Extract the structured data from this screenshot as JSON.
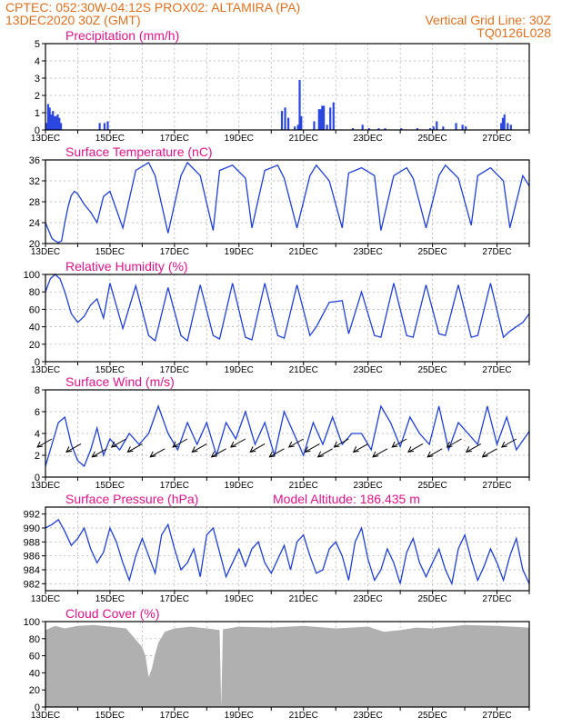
{
  "header": {
    "line1_left": "CPTEC:   052:30W-04:12S   PROX02: ALTAMIRA (PA)",
    "line2_left": "13DEC2020 30Z (GMT)",
    "line2_right": "Vertical Grid Line: 30Z",
    "line3_right": "TQ0126L028"
  },
  "colors": {
    "series": "#1f3fd8",
    "title": "#e0148c",
    "header": "#e07020",
    "cloud": "#b0b0b0"
  },
  "chart_data": [
    {
      "type": "bar",
      "title": "Precipitation (mm/h)",
      "xlabel": "",
      "ylabel": "mm/h",
      "ylim": [
        0,
        5
      ],
      "yticks": [
        "0",
        "1",
        "2",
        "3",
        "4",
        "5"
      ],
      "xticks": [
        "13DEC",
        "15DEC",
        "17DEC",
        "19DEC",
        "21DEC",
        "23DEC",
        "25DEC",
        "27DEC"
      ],
      "x_day_range": [
        0,
        15
      ],
      "x": [
        0.0,
        0.05,
        0.1,
        0.15,
        0.2,
        0.25,
        0.3,
        0.35,
        0.4,
        0.45,
        1.65,
        1.8,
        1.9,
        7.3,
        7.4,
        7.5,
        7.7,
        7.8,
        7.85,
        7.9,
        8.3,
        8.45,
        8.5,
        8.55,
        8.6,
        8.7,
        8.8,
        8.9,
        9.5,
        9.8,
        10.0,
        10.3,
        10.5,
        11.0,
        11.5,
        11.9,
        12.0,
        12.1,
        12.3,
        12.7,
        12.9,
        13.0,
        14.1,
        14.15,
        14.2,
        14.3,
        14.4
      ],
      "values": [
        0.4,
        1.5,
        1.3,
        0.9,
        1.1,
        0.8,
        0.8,
        0.9,
        0.7,
        0.4,
        0.4,
        0.4,
        0.5,
        1.1,
        1.3,
        0.7,
        0.2,
        0.3,
        2.9,
        0.8,
        0.5,
        1.2,
        1.2,
        1.4,
        1.4,
        0.3,
        1.3,
        1.6,
        0.1,
        0.3,
        0.1,
        0.1,
        0.1,
        0.1,
        0.1,
        0.1,
        0.2,
        0.5,
        0.2,
        0.4,
        0.3,
        0.2,
        0.4,
        0.7,
        0.9,
        0.4,
        0.3
      ]
    },
    {
      "type": "line",
      "title": "Surface Temperature (nC)",
      "ylim": [
        20,
        36
      ],
      "yticks": [
        "20",
        "24",
        "28",
        "32",
        "36"
      ],
      "xticks": [
        "13DEC",
        "15DEC",
        "17DEC",
        "19DEC",
        "21DEC",
        "23DEC",
        "25DEC",
        "27DEC"
      ],
      "x_day_range": [
        0,
        15
      ],
      "x": [
        0,
        0.1,
        0.2,
        0.3,
        0.4,
        0.5,
        0.6,
        0.7,
        0.8,
        0.9,
        1.0,
        1.2,
        1.4,
        1.6,
        1.8,
        2.0,
        2.4,
        2.8,
        3.2,
        3.4,
        3.8,
        4.2,
        4.4,
        4.8,
        5.2,
        5.4,
        5.8,
        6.2,
        6.4,
        6.8,
        7.2,
        7.4,
        7.8,
        8.2,
        8.4,
        8.8,
        9.2,
        9.4,
        9.8,
        10.2,
        10.4,
        10.8,
        11.2,
        11.4,
        11.8,
        12.2,
        12.4,
        12.8,
        13.2,
        13.4,
        13.8,
        14.2,
        14.4,
        14.8,
        15.0
      ],
      "values": [
        24,
        22.5,
        21,
        20.5,
        20.2,
        20.5,
        24,
        27,
        29.2,
        30,
        29.5,
        27.5,
        26,
        24,
        29,
        30,
        23,
        34,
        35.5,
        33,
        22,
        33,
        35.5,
        33,
        22.5,
        34,
        35,
        32.5,
        23,
        34,
        35,
        32.5,
        23,
        33,
        35,
        32,
        23,
        33.5,
        34.5,
        33,
        22.5,
        33,
        34.5,
        32.5,
        23,
        33,
        35,
        32.5,
        23.5,
        33,
        34.5,
        32,
        23,
        33,
        31
      ]
    },
    {
      "type": "line",
      "title": "Relative Humidity (%)",
      "ylim": [
        0,
        100
      ],
      "yticks": [
        "0",
        "20",
        "40",
        "60",
        "80",
        "100"
      ],
      "xticks": [
        "13DEC",
        "15DEC",
        "17DEC",
        "19DEC",
        "21DEC",
        "23DEC",
        "25DEC",
        "27DEC"
      ],
      "x_day_range": [
        0,
        15
      ],
      "x": [
        0,
        0.15,
        0.3,
        0.45,
        0.6,
        0.8,
        1.0,
        1.2,
        1.4,
        1.6,
        1.8,
        2.0,
        2.4,
        2.8,
        3.2,
        3.4,
        3.8,
        4.2,
        4.4,
        4.8,
        5.2,
        5.4,
        5.8,
        6.2,
        6.4,
        6.8,
        7.2,
        7.4,
        7.8,
        8.2,
        8.4,
        8.8,
        9.2,
        9.4,
        9.8,
        10.2,
        10.4,
        10.8,
        11.2,
        11.4,
        11.8,
        12.2,
        12.4,
        12.8,
        13.2,
        13.4,
        13.8,
        14.2,
        14.4,
        14.8,
        15.0
      ],
      "values": [
        80,
        95,
        100,
        95,
        80,
        55,
        45,
        52,
        65,
        72,
        50,
        90,
        38,
        87,
        30,
        24,
        85,
        30,
        24,
        88,
        30,
        26,
        90,
        28,
        25,
        90,
        30,
        27,
        88,
        30,
        40,
        68,
        70,
        32,
        80,
        30,
        28,
        90,
        30,
        28,
        88,
        32,
        30,
        88,
        28,
        30,
        90,
        28,
        35,
        45,
        55
      ]
    },
    {
      "type": "line",
      "title": "Surface Wind (m/s)",
      "ylim": [
        0,
        8
      ],
      "yticks": [
        "0",
        "2",
        "4",
        "6",
        "8"
      ],
      "xticks": [
        "13DEC",
        "15DEC",
        "17DEC",
        "19DEC",
        "21DEC",
        "23DEC",
        "25DEC",
        "27DEC"
      ],
      "x_day_range": [
        0,
        15
      ],
      "x": [
        0,
        0.2,
        0.4,
        0.6,
        0.8,
        1.0,
        1.2,
        1.4,
        1.6,
        1.8,
        2.0,
        2.3,
        2.6,
        2.9,
        3.2,
        3.5,
        3.8,
        4.1,
        4.4,
        4.7,
        5.0,
        5.3,
        5.6,
        5.9,
        6.2,
        6.5,
        6.8,
        7.1,
        7.4,
        7.7,
        8.0,
        8.3,
        8.6,
        8.9,
        9.2,
        9.5,
        9.8,
        10.1,
        10.4,
        10.7,
        11.0,
        11.3,
        11.6,
        11.9,
        12.2,
        12.5,
        12.8,
        13.1,
        13.4,
        13.7,
        14.0,
        14.3,
        14.6,
        15.0
      ],
      "values": [
        1,
        3,
        5,
        5.5,
        3,
        1.5,
        1,
        2.5,
        4.5,
        2,
        3.5,
        2.5,
        4,
        3,
        4,
        6.5,
        4,
        2.5,
        5,
        3,
        5,
        2,
        5,
        3.5,
        6,
        3,
        5,
        2,
        6,
        4,
        2,
        5,
        3,
        5.5,
        3,
        4,
        4,
        2.5,
        6.5,
        5,
        2.8,
        5.5,
        4,
        3,
        6.5,
        2.5,
        5,
        4,
        3,
        6.5,
        3,
        5.5,
        2.5,
        4.2
      ],
      "arrows_x": [
        0.2,
        1.1,
        1.9,
        2.5,
        3.0,
        3.7,
        4.4,
        5.0,
        5.6,
        6.2,
        6.8,
        7.4,
        8.0,
        8.5,
        8.9,
        9.4,
        10.0,
        10.6,
        11.2,
        11.7,
        12.3,
        12.9,
        13.5,
        14.0,
        14.6
      ]
    },
    {
      "type": "line",
      "title": "Surface Pressure (hPa)",
      "annotation": "Model Altitude: 186.435 m",
      "ylim": [
        981,
        993
      ],
      "yticks": [
        "982",
        "984",
        "986",
        "988",
        "990",
        "992"
      ],
      "xticks": [
        "13DEC",
        "15DEC",
        "17DEC",
        "19DEC",
        "21DEC",
        "23DEC",
        "25DEC",
        "27DEC"
      ],
      "x_day_range": [
        0,
        15
      ],
      "x": [
        0,
        0.2,
        0.4,
        0.6,
        0.8,
        1.0,
        1.2,
        1.4,
        1.6,
        1.8,
        2.0,
        2.2,
        2.4,
        2.6,
        2.8,
        3.0,
        3.2,
        3.4,
        3.6,
        3.8,
        4.0,
        4.2,
        4.4,
        4.6,
        4.8,
        5.0,
        5.2,
        5.4,
        5.6,
        5.8,
        6.0,
        6.2,
        6.4,
        6.6,
        6.8,
        7.0,
        7.2,
        7.4,
        7.6,
        7.8,
        8.0,
        8.2,
        8.4,
        8.6,
        8.8,
        9.0,
        9.2,
        9.4,
        9.6,
        9.8,
        10.0,
        10.2,
        10.4,
        10.6,
        10.8,
        11.0,
        11.2,
        11.4,
        11.6,
        11.8,
        12.0,
        12.2,
        12.4,
        12.6,
        12.8,
        13.0,
        13.2,
        13.4,
        13.6,
        13.8,
        14.0,
        14.2,
        14.4,
        14.6,
        14.8,
        15.0
      ],
      "values": [
        990,
        990.5,
        991.2,
        989.5,
        987.5,
        988.5,
        990,
        987,
        985,
        986.5,
        990,
        988,
        985,
        982.5,
        986,
        988.5,
        986,
        983.5,
        989,
        990.5,
        987,
        984,
        985,
        987,
        983,
        989,
        990,
        986.5,
        983,
        985,
        987,
        984.5,
        987,
        988,
        985,
        983.5,
        985.5,
        987.5,
        984,
        988,
        989,
        986,
        983.5,
        984,
        987,
        988,
        986,
        982.5,
        988,
        990,
        985.5,
        982.5,
        984,
        987,
        985,
        982,
        986.5,
        988.5,
        985,
        983,
        985,
        987,
        984,
        982,
        987,
        989,
        985.5,
        982.5,
        984.5,
        987,
        985,
        982.5,
        986,
        988.5,
        984,
        982
      ]
    },
    {
      "type": "area",
      "title": "Cloud Cover (%)",
      "ylim": [
        0,
        100
      ],
      "yticks": [
        "0",
        "20",
        "40",
        "60",
        "80",
        "100"
      ],
      "xticks": [
        "13DEC",
        "15DEC",
        "17DEC",
        "19DEC",
        "21DEC",
        "23DEC",
        "25DEC",
        "27DEC"
      ],
      "x_day_range": [
        0,
        15
      ],
      "x": [
        0,
        0.3,
        0.6,
        1.0,
        1.5,
        2.0,
        2.5,
        3.0,
        3.1,
        3.2,
        3.3,
        3.4,
        3.5,
        3.7,
        4.0,
        4.5,
        5.0,
        5.4,
        5.45,
        5.5,
        6.0,
        7.0,
        8.0,
        9.0,
        10.0,
        10.5,
        11.0,
        11.5,
        12.0,
        13.0,
        14.0,
        15.0
      ],
      "values": [
        90,
        95,
        92,
        95,
        96,
        94,
        92,
        70,
        60,
        35,
        45,
        62,
        75,
        88,
        92,
        94,
        92,
        90,
        0,
        91,
        94,
        93,
        95,
        92,
        94,
        88,
        90,
        93,
        92,
        96,
        95,
        93
      ]
    }
  ]
}
